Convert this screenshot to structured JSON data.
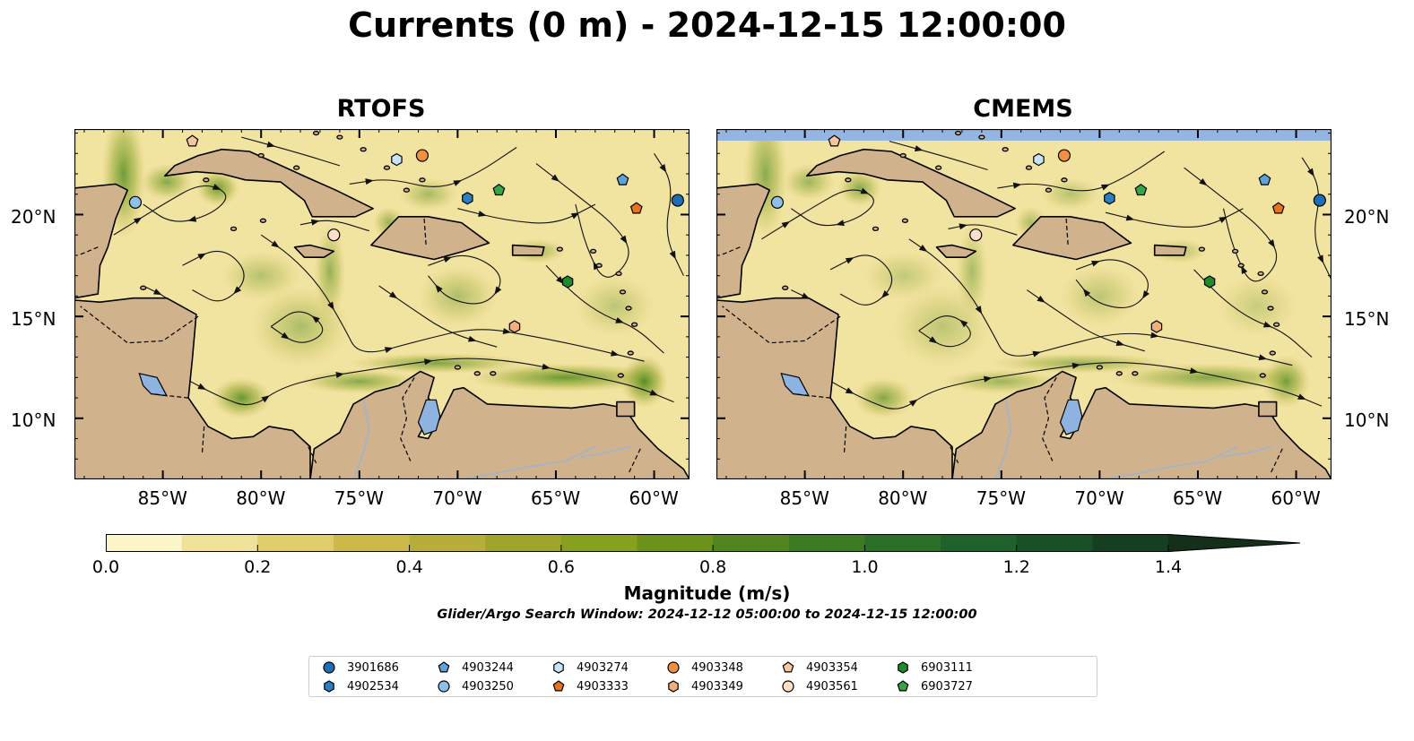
{
  "title": "Currents (0 m) - 2024-12-15 12:00:00",
  "panels": [
    {
      "name": "RTOFS"
    },
    {
      "name": "CMEMS"
    }
  ],
  "lon_ticks": [
    "85°W",
    "80°W",
    "75°W",
    "70°W",
    "65°W",
    "60°W"
  ],
  "lat_ticks": [
    "20°N",
    "15°N",
    "10°N"
  ],
  "colorbar": {
    "label": "Magnitude (m/s)",
    "ticks": [
      "0.0",
      "0.2",
      "0.4",
      "0.6",
      "0.8",
      "1.0",
      "1.2",
      "1.4"
    ],
    "range": [
      0,
      1.5
    ],
    "extend": "max",
    "colors": [
      "#fbf6c8",
      "#efe19a",
      "#dfcd6c",
      "#cdb84a",
      "#b7ad3a",
      "#9fa52b",
      "#87a01e",
      "#6c9219",
      "#528520",
      "#3c7a24",
      "#2b6e28",
      "#1e612a",
      "#185128",
      "#163f22",
      "#14301b"
    ]
  },
  "search_window": "Glider/Argo Search Window: 2024-12-12 05:00:00 to 2024-12-15 12:00:00",
  "map_extent": {
    "lon": [
      -89.5,
      -58.2
    ],
    "lat": [
      7.0,
      24.2
    ]
  },
  "colors": {
    "land": "#d0b28c",
    "water_lakes": "#8fb3e0",
    "rivers": "#9eb4cf"
  },
  "floats": [
    {
      "id": "3901686",
      "marker": "circle",
      "color": "#1f6eb5",
      "lon": -58.8,
      "lat": 20.7
    },
    {
      "id": "4902534",
      "marker": "hexagon",
      "color": "#2b7fc4",
      "lon": -69.5,
      "lat": 20.8
    },
    {
      "id": "4903244",
      "marker": "pentagon",
      "color": "#5ea2d9",
      "lon": -61.6,
      "lat": 21.7
    },
    {
      "id": "4903250",
      "marker": "circle",
      "color": "#8ec0ea",
      "lon": -86.4,
      "lat": 20.6
    },
    {
      "id": "4903274",
      "marker": "hexagon",
      "color": "#c8e4f8",
      "lon": -73.1,
      "lat": 22.7
    },
    {
      "id": "4903333",
      "marker": "pentagon",
      "color": "#e8731f",
      "lon": -60.9,
      "lat": 20.3
    },
    {
      "id": "4903348",
      "marker": "circle",
      "color": "#f09040",
      "lon": -71.8,
      "lat": 22.9
    },
    {
      "id": "4903349",
      "marker": "hexagon",
      "color": "#f5ae7a",
      "lon": -67.1,
      "lat": 14.5
    },
    {
      "id": "4903354",
      "marker": "pentagon",
      "color": "#f8c7a0",
      "lon": -83.5,
      "lat": 23.6
    },
    {
      "id": "4903561",
      "marker": "circle",
      "color": "#fde0c7",
      "lon": -76.3,
      "lat": 19.0
    },
    {
      "id": "6903111",
      "marker": "hexagon",
      "color": "#1e8a2c",
      "lon": -64.4,
      "lat": 16.7
    },
    {
      "id": "6903727",
      "marker": "pentagon",
      "color": "#36a447",
      "lon": -67.9,
      "lat": 21.2
    }
  ]
}
